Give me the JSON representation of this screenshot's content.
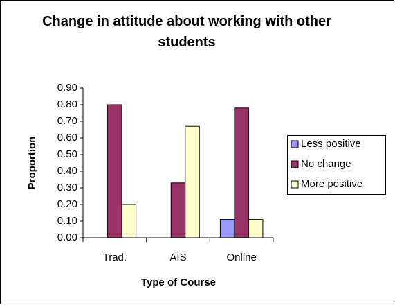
{
  "chart_data": {
    "type": "bar",
    "title": "Change in attitude about working with other students",
    "x_label": "Type of Course",
    "y_label": "Proportion",
    "categories": [
      "Trad.",
      "AIS",
      "Online"
    ],
    "series": [
      {
        "name": "Less positive",
        "color": "#9999ff",
        "values": [
          0,
          0,
          0.11
        ]
      },
      {
        "name": "No change",
        "color": "#993366",
        "values": [
          0.8,
          0.33,
          0.78
        ]
      },
      {
        "name": "More positive",
        "color": "#ffffcc",
        "values": [
          0.2,
          0.67,
          0.11
        ]
      }
    ],
    "ylim": [
      0,
      0.9
    ],
    "yticks": [
      {
        "value": 0,
        "label": "0.00"
      },
      {
        "value": 0.1,
        "label": "0.10"
      },
      {
        "value": 0.2,
        "label": "0.20"
      },
      {
        "value": 0.3,
        "label": "0.30"
      },
      {
        "value": 0.4,
        "label": "0.40"
      },
      {
        "value": 0.5,
        "label": "0.50"
      },
      {
        "value": 0.6,
        "label": "0.60"
      },
      {
        "value": 0.7,
        "label": "0.70"
      },
      {
        "value": 0.8,
        "label": "0.80"
      },
      {
        "value": 0.9,
        "label": "0.90"
      }
    ],
    "legend": "right",
    "grid": false
  }
}
